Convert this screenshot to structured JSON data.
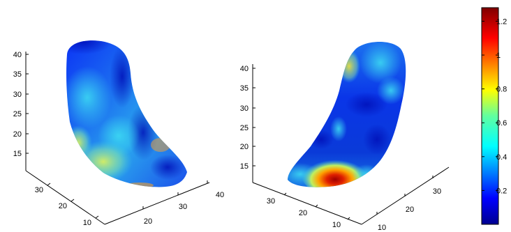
{
  "figure": {
    "left_panel": {
      "z_ticks": [
        "15",
        "20",
        "25",
        "30",
        "35",
        "40"
      ],
      "y_ticks": [
        "30",
        "20",
        "10"
      ],
      "x_ticks": [
        "20",
        "30",
        "40"
      ]
    },
    "right_panel": {
      "z_ticks": [
        "15",
        "20",
        "25",
        "30",
        "35",
        "40"
      ],
      "y_ticks": [
        "30",
        "20",
        "10"
      ],
      "x_ticks": [
        "10",
        "20",
        "30"
      ]
    }
  },
  "chart_data": {
    "type": "surface",
    "panels": 2,
    "colormap": "jet",
    "colorbar": {
      "range": [
        0,
        1.28
      ],
      "ticks": [
        "1.2",
        "1",
        "0.8",
        "0.6",
        "0.4",
        "0.2"
      ],
      "tick_values": [
        1.2,
        1.0,
        0.8,
        0.6,
        0.4,
        0.2
      ]
    },
    "surfaces": [
      {
        "view": "left",
        "xlim": [
          10,
          45
        ],
        "ylim": [
          5,
          40
        ],
        "zlim": [
          10,
          42
        ],
        "hotspots": [
          {
            "region": "lower-left",
            "value": 0.75
          },
          {
            "region": "middle",
            "value": 0.5
          },
          {
            "region": "upper",
            "value": 0.1
          }
        ]
      },
      {
        "view": "right",
        "xlim": [
          5,
          40
        ],
        "ylim": [
          5,
          40
        ],
        "zlim": [
          10,
          42
        ],
        "hotspots": [
          {
            "region": "bottom",
            "value": 1.25
          },
          {
            "region": "upper-left",
            "value": 0.7
          },
          {
            "region": "middle",
            "value": 0.1
          }
        ]
      }
    ]
  }
}
